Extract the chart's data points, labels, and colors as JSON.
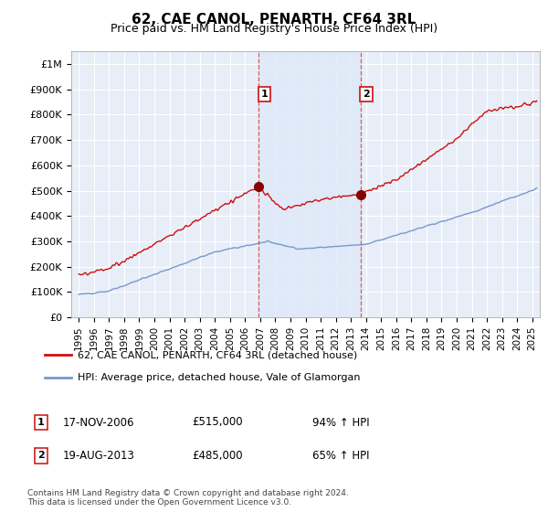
{
  "title": "62, CAE CANOL, PENARTH, CF64 3RL",
  "subtitle": "Price paid vs. HM Land Registry's House Price Index (HPI)",
  "ylim": [
    0,
    1050000
  ],
  "xlim_start": 1994.5,
  "xlim_end": 2025.5,
  "hpi_color": "#7799cc",
  "price_color": "#cc1111",
  "background_color": "#ffffff",
  "plot_bg_color": "#e8eef8",
  "grid_color": "#cccccc",
  "shade_color": "#dde8f8",
  "legend_label_red": "62, CAE CANOL, PENARTH, CF64 3RL (detached house)",
  "legend_label_blue": "HPI: Average price, detached house, Vale of Glamorgan",
  "sale1_date": "17-NOV-2006",
  "sale1_price": 515000,
  "sale1_year": 2006.88,
  "sale2_date": "19-AUG-2013",
  "sale2_price": 485000,
  "sale2_year": 2013.63,
  "footnote": "Contains HM Land Registry data © Crown copyright and database right 2024.\nThis data is licensed under the Open Government Licence v3.0.",
  "ytick_labels": [
    "£0",
    "£100K",
    "£200K",
    "£300K",
    "£400K",
    "£500K",
    "£600K",
    "£700K",
    "£800K",
    "£900K",
    "£1M"
  ],
  "ytick_values": [
    0,
    100000,
    200000,
    300000,
    400000,
    500000,
    600000,
    700000,
    800000,
    900000,
    1000000
  ],
  "xtick_years": [
    1995,
    1996,
    1997,
    1998,
    1999,
    2000,
    2001,
    2002,
    2003,
    2004,
    2005,
    2006,
    2007,
    2008,
    2009,
    2010,
    2011,
    2012,
    2013,
    2014,
    2015,
    2016,
    2017,
    2018,
    2019,
    2020,
    2021,
    2022,
    2023,
    2024,
    2025
  ]
}
